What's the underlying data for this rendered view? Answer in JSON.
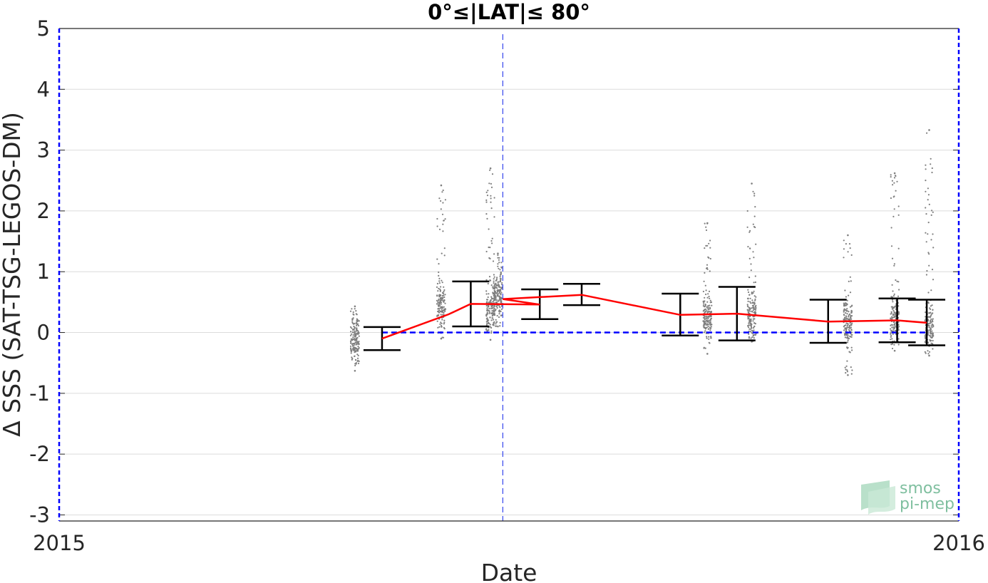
{
  "chart_data": {
    "type": "scatter",
    "title": "0°≤|LAT|≤ 80°",
    "xlabel": "Date",
    "ylabel": "Δ SSS (SAT-TSG-LEGOS-DM)",
    "xlim": [
      "2015-01-01",
      "2016-01-01"
    ],
    "ylim": [
      -3.1,
      5
    ],
    "x_ticks": [
      "2015",
      "2016"
    ],
    "y_ticks": [
      "5",
      "4",
      "3",
      "2",
      "1",
      "0",
      "-1",
      "-2",
      "-3"
    ],
    "y_tick_values": [
      5,
      4,
      3,
      2,
      1,
      0,
      -1,
      -2,
      -3
    ],
    "grid": true,
    "vertical_marker_date": "2015-06-30",
    "reference_line": {
      "y": 0,
      "from": "2015-05-12",
      "to": "2015-12-19",
      "color": "#0000ff"
    },
    "mean_series": {
      "name": "",
      "color": "#ff0000",
      "dates": [
        "2015-05-12",
        "2015-06-08",
        "2015-06-17",
        "2015-07-15",
        "2015-06-30",
        "2015-08-01",
        "2015-09-10",
        "2015-10-03",
        "2015-11-09",
        "2015-12-07",
        "2015-12-19"
      ],
      "values": [
        -0.1,
        0.3,
        0.47,
        0.46,
        0.55,
        0.62,
        0.29,
        0.31,
        0.18,
        0.2,
        0.16
      ]
    },
    "error_bars": [
      {
        "date": "2015-05-12",
        "low": -0.29,
        "high": 0.09
      },
      {
        "date": "2015-06-17",
        "low": 0.1,
        "high": 0.84
      },
      {
        "date": "2015-07-15",
        "low": 0.22,
        "high": 0.71
      },
      {
        "date": "2015-08-01",
        "low": 0.45,
        "high": 0.8
      },
      {
        "date": "2015-09-10",
        "low": -0.05,
        "high": 0.64
      },
      {
        "date": "2015-10-03",
        "low": -0.13,
        "high": 0.75
      },
      {
        "date": "2015-11-09",
        "low": -0.17,
        "high": 0.54
      },
      {
        "date": "2015-12-07",
        "low": -0.16,
        "high": 0.56
      },
      {
        "date": "2015-12-19",
        "low": -0.21,
        "high": 0.54
      }
    ],
    "scatter_clusters": [
      {
        "date": "2015-05-01",
        "low": -0.63,
        "high": 0.43,
        "center": -0.1
      },
      {
        "date": "2015-06-05",
        "low": -0.1,
        "high": 2.42,
        "center": 0.45
      },
      {
        "date": "2015-06-25",
        "low": -0.12,
        "high": 2.7,
        "center": 0.4
      },
      {
        "date": "2015-06-28",
        "low": 0.1,
        "high": 1.3,
        "center": 0.6
      },
      {
        "date": "2015-09-21",
        "low": -0.35,
        "high": 1.8,
        "center": 0.25
      },
      {
        "date": "2015-10-09",
        "low": -0.15,
        "high": 2.45,
        "center": 0.3
      },
      {
        "date": "2015-11-17",
        "low": -0.7,
        "high": 1.6,
        "center": 0.15
      },
      {
        "date": "2015-12-06",
        "low": -0.3,
        "high": 2.62,
        "center": 0.2
      },
      {
        "date": "2015-12-20",
        "low": -0.38,
        "high": 3.33,
        "center": 0.1
      }
    ],
    "logo": {
      "line1": "smos",
      "line2": "pi-mep"
    }
  }
}
